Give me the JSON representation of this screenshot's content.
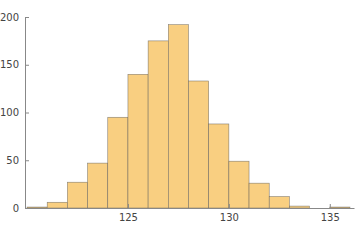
{
  "chart_data": {
    "type": "histogram",
    "bins": [
      120,
      121,
      122,
      123,
      124,
      125,
      126,
      127,
      128,
      129,
      130,
      131,
      132,
      133,
      134,
      135,
      136
    ],
    "values": [
      1,
      6,
      27,
      47,
      95,
      140,
      175,
      192,
      133,
      88,
      49,
      26,
      12,
      2,
      0,
      1
    ],
    "color": "#f9cf81",
    "xlim": [
      119.9,
      136.2
    ],
    "xticks": [
      125,
      130,
      135
    ],
    "ylim": [
      0,
      200
    ],
    "yticks": [
      0,
      50,
      100,
      150,
      200
    ]
  }
}
